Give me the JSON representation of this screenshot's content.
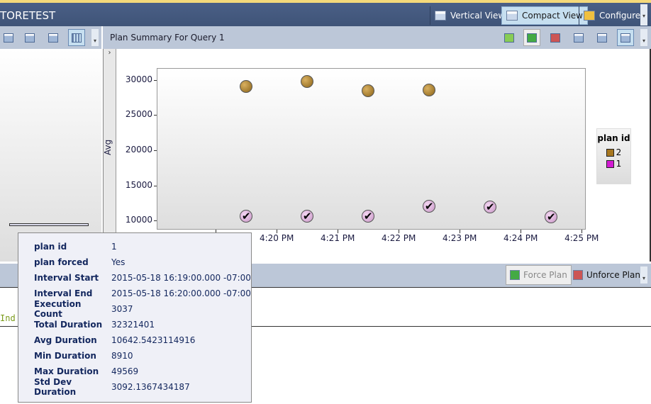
{
  "window": {
    "title": "TORETEST"
  },
  "view_buttons": [
    {
      "label": "Vertical View",
      "icon": "vertical-view-icon"
    },
    {
      "label": "Compact View",
      "icon": "compact-view-icon",
      "active": true
    },
    {
      "label": "Configure",
      "icon": "configure-icon"
    }
  ],
  "plan_panel": {
    "title": "Plan Summary For Query 1",
    "expand_glyph": "›"
  },
  "bottom_toolbar": {
    "force_label": "Force Plan",
    "unforce_label": "Unforce Plan"
  },
  "editor": {
    "text": "Ind"
  },
  "chart_data": {
    "type": "scatter",
    "ylabel": "Avg",
    "xlabel": "",
    "yticks": [
      "30000",
      "25000",
      "20000",
      "15000",
      "10000"
    ],
    "xticks": [
      "4:20 PM",
      "4:21 PM",
      "4:22 PM",
      "4:23 PM",
      "4:24 PM",
      "4:25 PM"
    ],
    "ylim": [
      8700,
      31700
    ],
    "xlim": [
      "16:18:02",
      "16:25:04"
    ],
    "legend": {
      "title": "plan id",
      "position": "right"
    },
    "series": [
      {
        "name": "2",
        "color": "#a7771f",
        "x": [
          "16:19:30",
          "16:20:30",
          "16:21:30",
          "16:22:30"
        ],
        "y": [
          29100,
          29800,
          28500,
          28600
        ]
      },
      {
        "name": "1",
        "color": "#d21ad2",
        "marker": "checkmark",
        "x": [
          "16:19:30",
          "16:20:30",
          "16:21:30",
          "16:22:30",
          "16:23:30",
          "16:24:30"
        ],
        "y": [
          10600,
          10600,
          10600,
          12000,
          11900,
          10500
        ]
      }
    ]
  },
  "tooltip": [
    {
      "k": "plan id",
      "v": "1"
    },
    {
      "k": "plan forced",
      "v": "Yes"
    },
    {
      "k": "Interval Start",
      "v": "2015-05-18 16:19:00.000 -07:00"
    },
    {
      "k": "Interval End",
      "v": "2015-05-18 16:20:00.000 -07:00"
    },
    {
      "k": "Execution Count",
      "v": "3037"
    },
    {
      "k": "Total Duration",
      "v": "32321401"
    },
    {
      "k": "Avg Duration",
      "v": "10642.5423114916"
    },
    {
      "k": "Min Duration",
      "v": "8910"
    },
    {
      "k": "Max Duration",
      "v": "49569"
    },
    {
      "k": "Std Dev Duration",
      "v": "3092.1367434187"
    }
  ]
}
